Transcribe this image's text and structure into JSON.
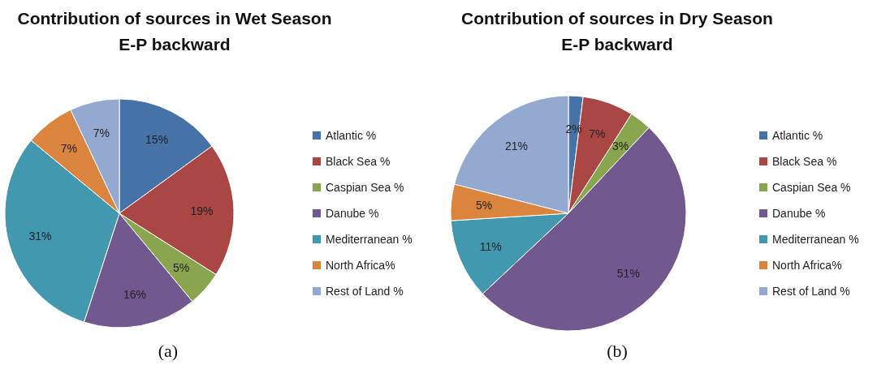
{
  "chart_data": [
    {
      "type": "pie",
      "title": "Contribution of sources in Wet Season",
      "subtitle": "E-P backward",
      "annotations": [
        "(a)"
      ],
      "legend": "right",
      "categories": [
        "Atlantic %",
        "Black Sea %",
        "Caspian Sea %",
        "Danube %",
        "Mediterranean %",
        "North Africa%",
        "Rest of Land %"
      ],
      "values": [
        15,
        19,
        5,
        16,
        31,
        7,
        7
      ],
      "value_labels": [
        "15%",
        "19%",
        "5%",
        "16%",
        "31%",
        "7%",
        "7%"
      ],
      "colors": [
        "#4572a7",
        "#aa4643",
        "#89a54e",
        "#71588f",
        "#4198af",
        "#db843d",
        "#93a9cf"
      ]
    },
    {
      "type": "pie",
      "title": "Contribution of sources in Dry Season",
      "subtitle": "E-P backward",
      "annotations": [
        "(b)"
      ],
      "legend": "right",
      "categories": [
        "Atlantic %",
        "Black Sea %",
        "Caspian Sea %",
        "Danube %",
        "Mediterranean %",
        "North Africa%",
        "Rest of Land %"
      ],
      "values": [
        2,
        7,
        3,
        51,
        11,
        5,
        21
      ],
      "value_labels": [
        "2%",
        "7%",
        "3%",
        "51%",
        "11%",
        "5%",
        "21%"
      ],
      "colors": [
        "#4572a7",
        "#aa4643",
        "#89a54e",
        "#71588f",
        "#4198af",
        "#db843d",
        "#93a9cf"
      ]
    }
  ]
}
